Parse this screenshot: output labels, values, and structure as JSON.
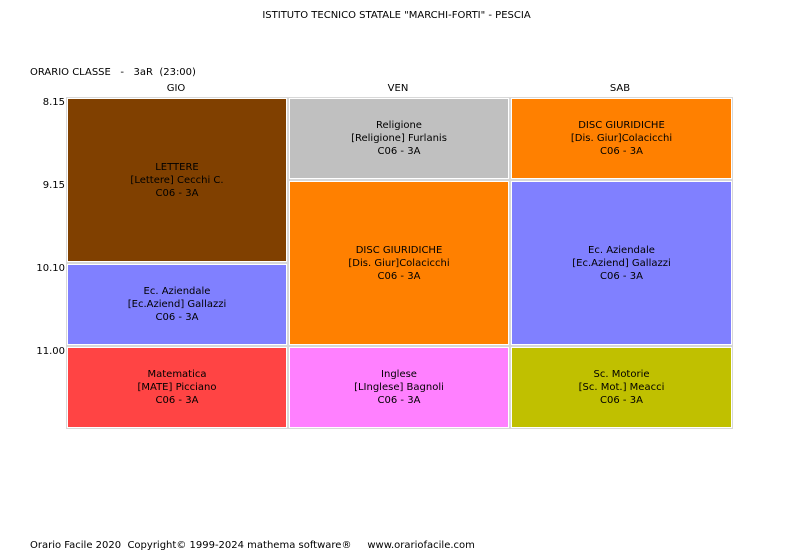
{
  "header": {
    "title": "ISTITUTO TECNICO STATALE \"MARCHI-FORTI\" - PESCIA",
    "class_label": "ORARIO CLASSE   -   3aR  (23:00)"
  },
  "days": [
    "GIO",
    "VEN",
    "SAB"
  ],
  "times": [
    "8.15",
    "9.15",
    "10.10",
    "11.00"
  ],
  "cells": [
    {
      "id": "gio-lettere",
      "subject": "LETTERE",
      "teacher": "[Lettere] Cecchi C.",
      "room": "C06 - 3A",
      "color": "#804000"
    },
    {
      "id": "gio-ec-aziendale",
      "subject": "Ec. Aziendale",
      "teacher": "[Ec.Aziend] Gallazzi",
      "room": "C06 - 3A",
      "color": "#8080ff"
    },
    {
      "id": "gio-matematica",
      "subject": "Matematica",
      "teacher": "[MATE] Picciano",
      "room": "C06 - 3A",
      "color": "#ff4444"
    },
    {
      "id": "ven-religione",
      "subject": "Religione",
      "teacher": "[Religione] Furlanis",
      "room": "C06 - 3A",
      "color": "#c0c0c0"
    },
    {
      "id": "ven-disc-giuridiche",
      "subject": "DISC GIURIDICHE",
      "teacher": "[Dis. Giur]Colacicchi",
      "room": "C06 - 3A",
      "color": "#ff8000"
    },
    {
      "id": "ven-inglese",
      "subject": "Inglese",
      "teacher": "[LInglese] Bagnoli",
      "room": "C06 - 3A",
      "color": "#ff80ff"
    },
    {
      "id": "sab-disc-giuridiche",
      "subject": "DISC GIURIDICHE",
      "teacher": "[Dis. Giur]Colacicchi",
      "room": "C06 - 3A",
      "color": "#ff8000"
    },
    {
      "id": "sab-ec-aziendale",
      "subject": "Ec. Aziendale",
      "teacher": "[Ec.Aziend] Gallazzi",
      "room": "C06 - 3A",
      "color": "#8080ff"
    },
    {
      "id": "sab-sc-motorie",
      "subject": "Sc. Motorie",
      "teacher": "[Sc. Mot.] Meacci",
      "room": "C06 - 3A",
      "color": "#c0c000"
    }
  ],
  "footer": "Orario Facile 2020  Copyright© 1999-2024 mathema software®     www.orariofacile.com"
}
